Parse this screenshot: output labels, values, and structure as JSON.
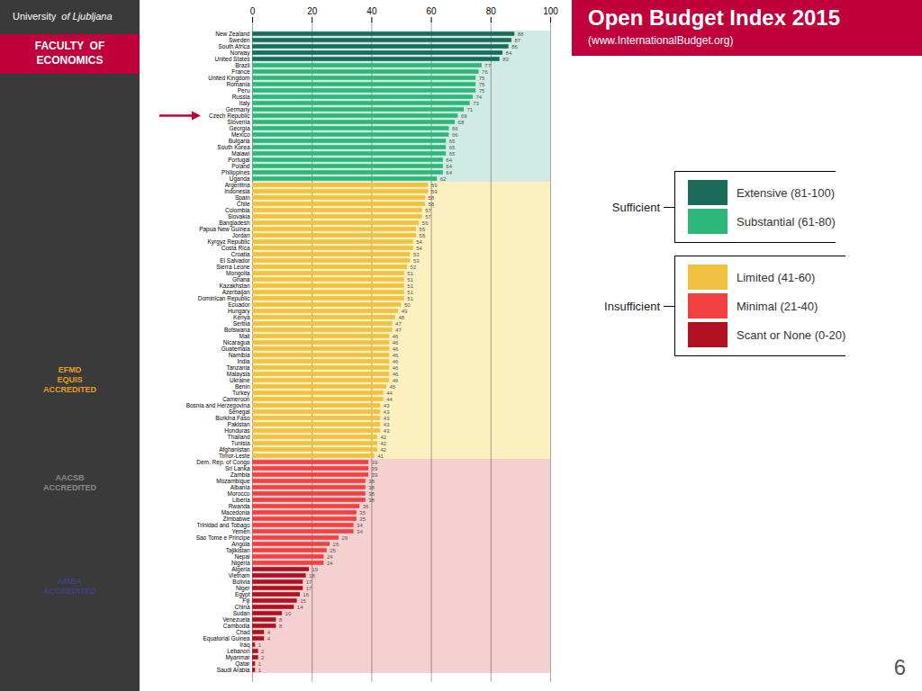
{
  "chart_data": {
    "type": "bar",
    "orientation": "horizontal",
    "title": "Open Budget Index 2015",
    "subtitle": "(www.InternationalBudget.org)",
    "categories": [
      "New Zealand",
      "Sweden",
      "South Africa",
      "Norway",
      "United States",
      "Brazil",
      "France",
      "United Kingdom",
      "Romania",
      "Peru",
      "Russia",
      "Italy",
      "Germany",
      "Czech Republic",
      "Slovenia",
      "Georgia",
      "Mexico",
      "Bulgaria",
      "South Korea",
      "Malawi",
      "Portugal",
      "Poland",
      "Philippines",
      "Uganda",
      "Argentina",
      "Indonesia",
      "Spain",
      "Chile",
      "Colombia",
      "Slovakia",
      "Bangladesh",
      "Papua New Guinea",
      "Jordan",
      "Kyrgyz Republic",
      "Costa Rica",
      "Croatia",
      "El Salvador",
      "Sierra Leone",
      "Mongolia",
      "Ghana",
      "Kazakhstan",
      "Azerbaijan",
      "Dominican Republic",
      "Ecuador",
      "Hungary",
      "Kenya",
      "Serbia",
      "Botswana",
      "Mali",
      "Nicaragua",
      "Guatemala",
      "Namibia",
      "India",
      "Tanzania",
      "Malaysia",
      "Ukraine",
      "Benin",
      "Turkey",
      "Cameroon",
      "Bosnia and Herzegovina",
      "Senegal",
      "Burkina Faso",
      "Pakistan",
      "Honduras",
      "Thailand",
      "Tunisia",
      "Afghanistan",
      "Timor-Leste",
      "Dem. Rep. of Congo",
      "Sri Lanka",
      "Zambia",
      "Mozambique",
      "Albania",
      "Morocco",
      "Liberia",
      "Rwanda",
      "Macedonia",
      "Zimbabwe",
      "Trinidad and Tobago",
      "Yemen",
      "Sao Tome e Principe",
      "Angola",
      "Tajikistan",
      "Nepal",
      "Nigeria",
      "Algeria",
      "Vietnam",
      "Bolivia",
      "Niger",
      "Egypt",
      "Fiji",
      "China",
      "Sudan",
      "Venezuela",
      "Cambodia",
      "Chad",
      "Equatorial Guinea",
      "Iraq",
      "Lebanon",
      "Myanmar",
      "Qatar",
      "Saudi Arabia"
    ],
    "values": [
      88,
      87,
      86,
      84,
      83,
      77,
      76,
      75,
      75,
      75,
      74,
      73,
      71,
      69,
      68,
      66,
      66,
      65,
      65,
      65,
      64,
      64,
      64,
      62,
      59,
      59,
      58,
      58,
      57,
      57,
      56,
      55,
      55,
      54,
      54,
      53,
      53,
      52,
      51,
      51,
      51,
      51,
      51,
      50,
      49,
      48,
      47,
      47,
      46,
      46,
      46,
      46,
      46,
      46,
      46,
      46,
      45,
      44,
      44,
      43,
      43,
      43,
      43,
      43,
      42,
      42,
      42,
      41,
      39,
      39,
      39,
      38,
      38,
      38,
      38,
      36,
      35,
      35,
      34,
      34,
      29,
      26,
      25,
      24,
      24,
      19,
      18,
      17,
      17,
      16,
      15,
      14,
      10,
      8,
      8,
      4,
      4,
      1,
      2,
      2,
      1,
      1
    ],
    "colors": [
      "#1a6b5a",
      "#1a6b5a",
      "#1a6b5a",
      "#1a6b5a",
      "#1a6b5a",
      "#2db87a",
      "#2db87a",
      "#2db87a",
      "#2db87a",
      "#2db87a",
      "#2db87a",
      "#2db87a",
      "#2db87a",
      "#2db87a",
      "#2db87a",
      "#2db87a",
      "#2db87a",
      "#2db87a",
      "#2db87a",
      "#2db87a",
      "#2db87a",
      "#2db87a",
      "#2db87a",
      "#2db87a",
      "#f0c040",
      "#f0c040",
      "#f0c040",
      "#f0c040",
      "#f0c040",
      "#f0c040",
      "#f0c040",
      "#f0c040",
      "#f0c040",
      "#f0c040",
      "#f0c040",
      "#f0c040",
      "#f0c040",
      "#f0c040",
      "#f0c040",
      "#f0c040",
      "#f0c040",
      "#f0c040",
      "#f0c040",
      "#f0c040",
      "#f0c040",
      "#f0c040",
      "#f0c040",
      "#f0c040",
      "#f0c040",
      "#f0c040",
      "#f0c040",
      "#f0c040",
      "#f0c040",
      "#f0c040",
      "#f0c040",
      "#f0c040",
      "#f0c040",
      "#f0c040",
      "#f0c040",
      "#f0c040",
      "#f0c040",
      "#f0c040",
      "#f0c040",
      "#f0c040",
      "#f0c040",
      "#f0c040",
      "#f0c040",
      "#f0c040",
      "#f04040",
      "#f04040",
      "#f04040",
      "#f04040",
      "#f04040",
      "#f04040",
      "#f04040",
      "#f04040",
      "#f04040",
      "#f04040",
      "#f04040",
      "#f04040",
      "#f04040",
      "#f04040",
      "#f04040",
      "#f04040",
      "#f04040",
      "#b01020",
      "#b01020",
      "#b01020",
      "#b01020",
      "#b01020",
      "#b01020",
      "#b01020",
      "#b01020",
      "#b01020",
      "#b01020",
      "#b01020",
      "#b01020",
      "#b01020",
      "#b01020",
      "#b01020",
      "#b01020",
      "#b01020"
    ],
    "xlim": [
      0,
      100
    ],
    "xticks": [
      0,
      20,
      40,
      60,
      80,
      100
    ],
    "grid": true,
    "data_labels": true,
    "legend": "right",
    "legend_entries": [
      {
        "name": "Extensive (81-100)",
        "color": "#1a6b5a"
      },
      {
        "name": "Substantial (61-80)",
        "color": "#2db87a"
      },
      {
        "name": "Limited (41-60)",
        "color": "#f0c040"
      },
      {
        "name": "Minimal (21-40)",
        "color": "#f04040"
      },
      {
        "name": "Scant or None (0-20)",
        "color": "#b01020"
      }
    ],
    "legend_groups": [
      {
        "label": "Sufficient",
        "entries": [
          "Extensive (81-100)",
          "Substantial (61-80)"
        ]
      },
      {
        "label": "Insufficient",
        "entries": [
          "Limited (41-60)",
          "Minimal (21-40)",
          "Scant or None (0-20)"
        ]
      }
    ],
    "bands": [
      {
        "from": "New Zealand",
        "to": "Uganda",
        "color": "#d0ebe4"
      },
      {
        "from": "Argentina",
        "to": "Timor-Leste",
        "color": "#fdf0c0"
      },
      {
        "from": "Dem. Rep. of Congo",
        "to": "Saudi Arabia",
        "color": "#f5d0d0"
      }
    ],
    "arrow": {
      "category": "Czech Republic",
      "color": "#c0003a"
    },
    "header_color": "#c0003a",
    "sidebar": {
      "color": "#3a3a3a",
      "header": [
        "University",
        "of Ljubljana"
      ],
      "banner": "FACULTY  OF\nECONOMICS",
      "accreditations": [
        {
          "text": "EFMD\nEQUIS\nACCREDITED",
          "color": "#e8a020"
        },
        {
          "text": "AACSB\nACCREDITED",
          "color": "#8a8a8a"
        },
        {
          "text": "AMBA\nACCREDITED",
          "color": "#404080"
        }
      ]
    },
    "page_number": "6"
  }
}
